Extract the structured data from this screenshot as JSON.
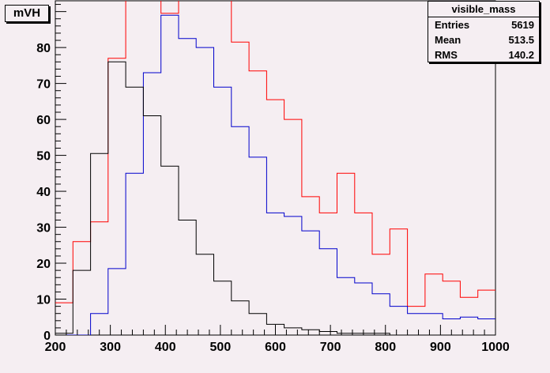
{
  "title": "mVH",
  "stats": {
    "name": "visible_mass",
    "rows": [
      {
        "label": "Entries",
        "value": "5619"
      },
      {
        "label": "Mean",
        "value": "513.5"
      },
      {
        "label": "RMS",
        "value": "140.2"
      }
    ]
  },
  "chart_data": {
    "type": "line",
    "title": "mVH",
    "xlabel": "",
    "ylabel": "",
    "xlim": [
      200,
      1000
    ],
    "ylim": [
      0,
      93
    ],
    "xticks": [
      200,
      300,
      400,
      500,
      600,
      700,
      800,
      900,
      1000
    ],
    "yticks": [
      0,
      10,
      20,
      30,
      40,
      50,
      60,
      70,
      80,
      90
    ],
    "grid": false,
    "histogram": true,
    "bin_edges": [
      200,
      232,
      264,
      296,
      328,
      360,
      392,
      424,
      456,
      488,
      520,
      552,
      584,
      616,
      648,
      680,
      712,
      744,
      776,
      808,
      840,
      872,
      904,
      936,
      968,
      1000
    ],
    "series": [
      {
        "color": "#ff0000",
        "values": [
          9,
          26,
          31.5,
          77,
          99,
          100,
          89.5,
          97,
          97,
          95.5,
          81.5,
          73.5,
          65.5,
          60,
          38.5,
          34,
          45,
          34,
          22.5,
          29.5,
          8,
          17,
          15,
          10.5,
          12.5
        ]
      },
      {
        "color": "#0000cc",
        "values": [
          0,
          0,
          6,
          18.5,
          45,
          73,
          89,
          82.5,
          80,
          69,
          58,
          49.5,
          34,
          33,
          29,
          24,
          16,
          14.5,
          11.5,
          8,
          6,
          6,
          4.5,
          5,
          4.5
        ]
      },
      {
        "color": "#000000",
        "values": [
          0.5,
          18,
          50.5,
          76,
          69,
          61,
          47,
          32,
          22.5,
          15,
          9.5,
          6,
          3,
          2,
          1.5,
          1,
          0.5,
          0.5,
          0.5,
          0,
          0,
          0,
          0,
          0,
          0
        ]
      }
    ]
  }
}
